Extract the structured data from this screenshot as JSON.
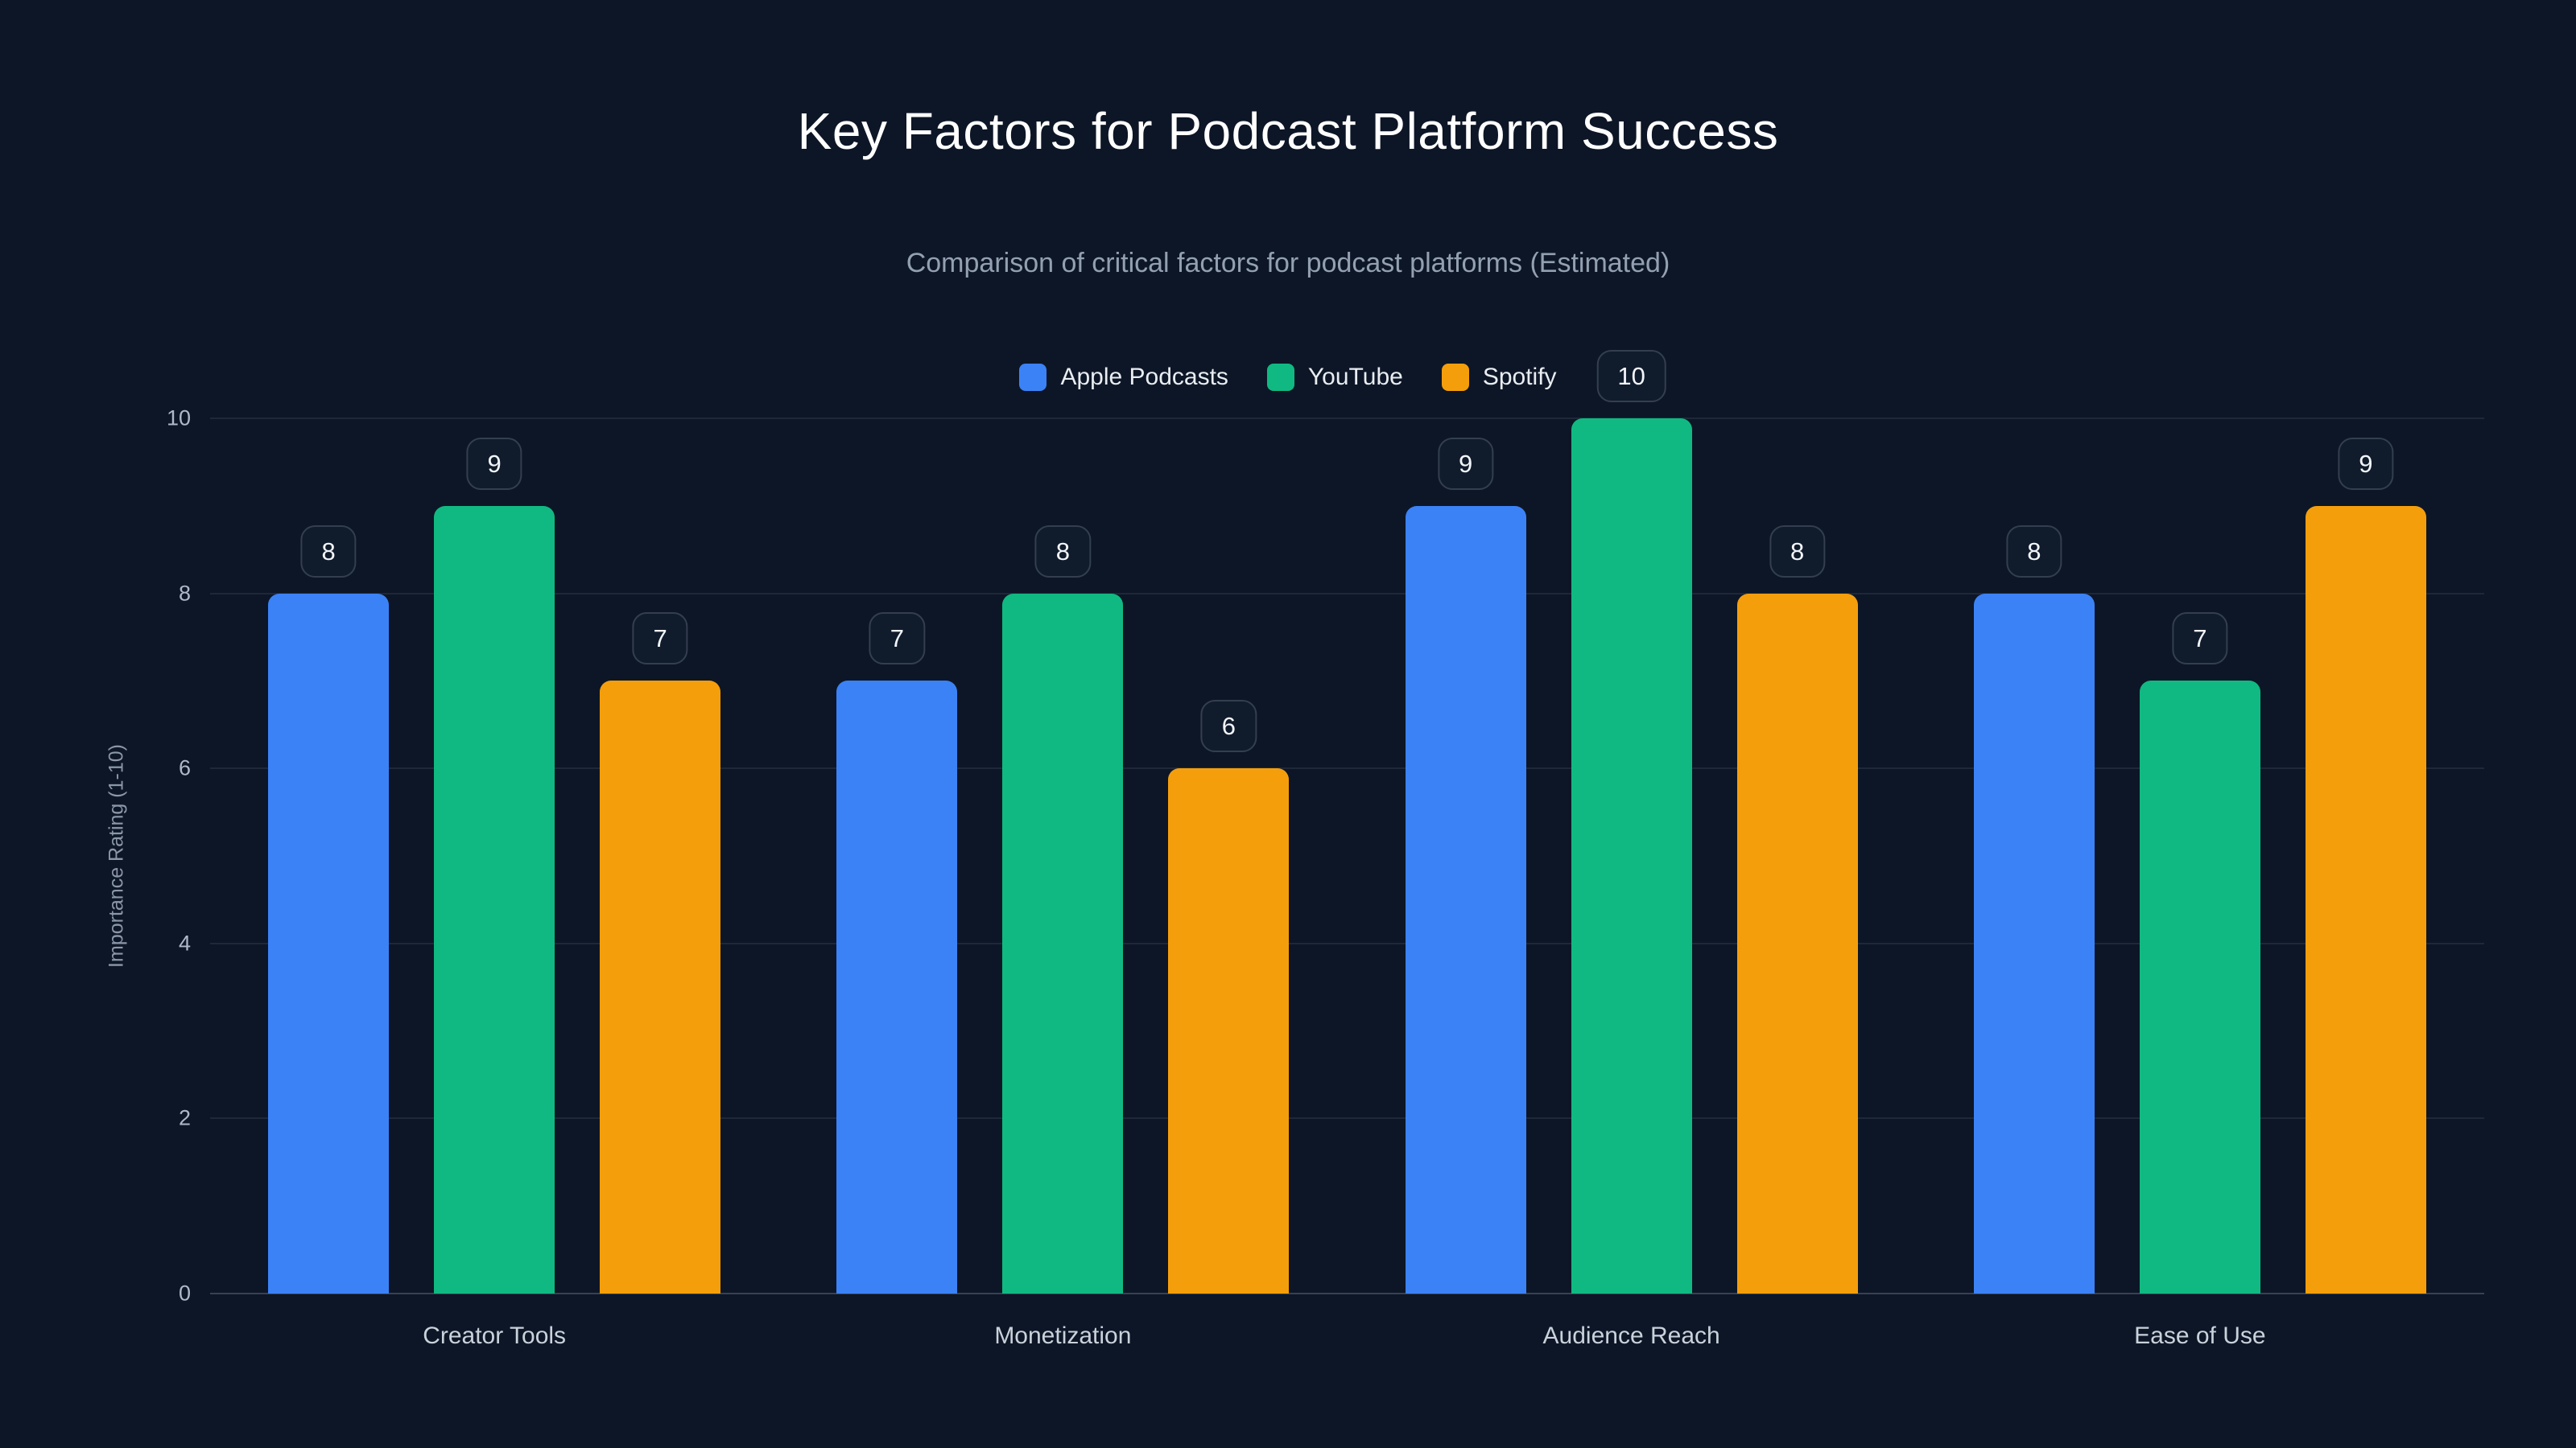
{
  "chart_data": {
    "type": "bar",
    "title": "Key Factors for Podcast Platform Success",
    "subtitle": "Comparison of critical factors for podcast platforms (Estimated)",
    "categories": [
      "Creator Tools",
      "Monetization",
      "Audience Reach",
      "Ease of Use"
    ],
    "series": [
      {
        "name": "Apple Podcasts",
        "color": "#3b82f6",
        "values": [
          8,
          7,
          9,
          8
        ]
      },
      {
        "name": "YouTube",
        "color": "#10b981",
        "values": [
          9,
          8,
          10,
          7
        ]
      },
      {
        "name": "Spotify",
        "color": "#f59e0b",
        "values": [
          7,
          6,
          8,
          9
        ]
      }
    ],
    "ylabel": "Importance Rating (1-10)",
    "yticks": [
      0,
      2,
      4,
      6,
      8,
      10
    ],
    "ylim": [
      0,
      10
    ],
    "legend_position": "top",
    "grid": true,
    "value_labels": true
  },
  "colors": {
    "background": "#0d1626",
    "badge_border": "#333e4f",
    "gridline": "rgba(148,163,184,0.13)"
  }
}
